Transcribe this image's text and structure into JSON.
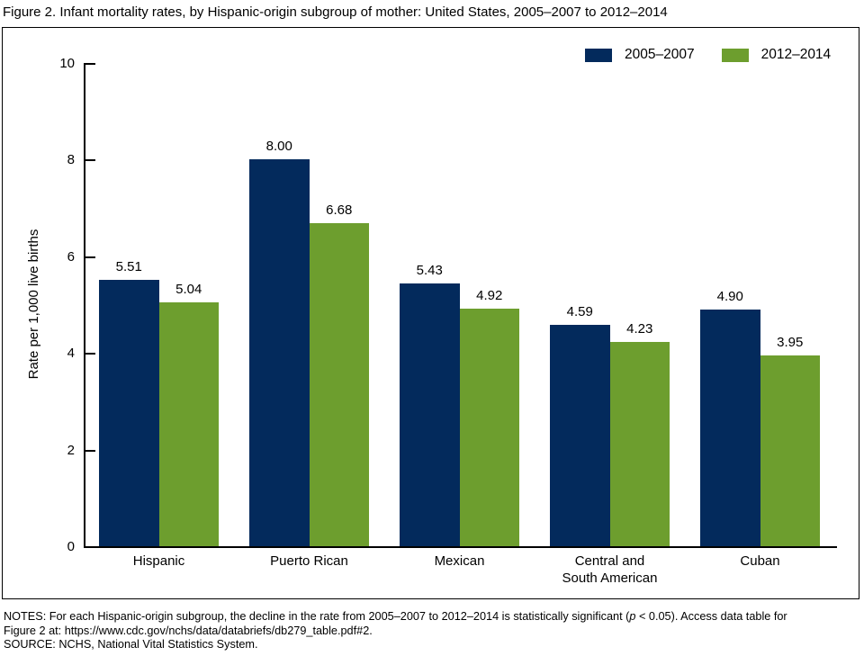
{
  "figure_title": "Figure 2. Infant mortality rates, by Hispanic-origin subgroup of mother: United States, 2005–2007 to 2012–2014",
  "chart_data": {
    "type": "bar",
    "title": "Figure 2. Infant mortality rates, by Hispanic-origin subgroup of mother: United States, 2005–2007 to 2012–2014",
    "categories": [
      "Hispanic",
      "Puerto Rican",
      "Mexican",
      "Central and\nSouth American",
      "Cuban"
    ],
    "series": [
      {
        "name": "2005–2007",
        "color": "#032a5c",
        "values": [
          5.51,
          8.0,
          5.43,
          4.59,
          4.9
        ]
      },
      {
        "name": "2012–2014",
        "color": "#6d9e2e",
        "values": [
          5.04,
          6.68,
          4.92,
          4.23,
          3.95
        ]
      }
    ],
    "xlabel": "",
    "ylabel": "Rate per 1,000 live births",
    "ylim": [
      0,
      10
    ],
    "y_ticks": [
      0,
      2,
      4,
      6,
      8,
      10
    ],
    "grid": false,
    "legend_position": "top-right",
    "value_labels": true,
    "value_label_decimals": 2
  },
  "notes": {
    "line1_before": "NOTES: For each Hispanic-origin subgroup, the decline in the rate from 2005–2007 to 2012–2014 is statistically significant (",
    "line1_italic": "p",
    "line1_after": " < 0.05). Access data table for",
    "line2": "Figure 2 at: https://www.cdc.gov/nchs/data/databriefs/db279_table.pdf#2.",
    "line3": "SOURCE: NCHS, National Vital Statistics System."
  }
}
